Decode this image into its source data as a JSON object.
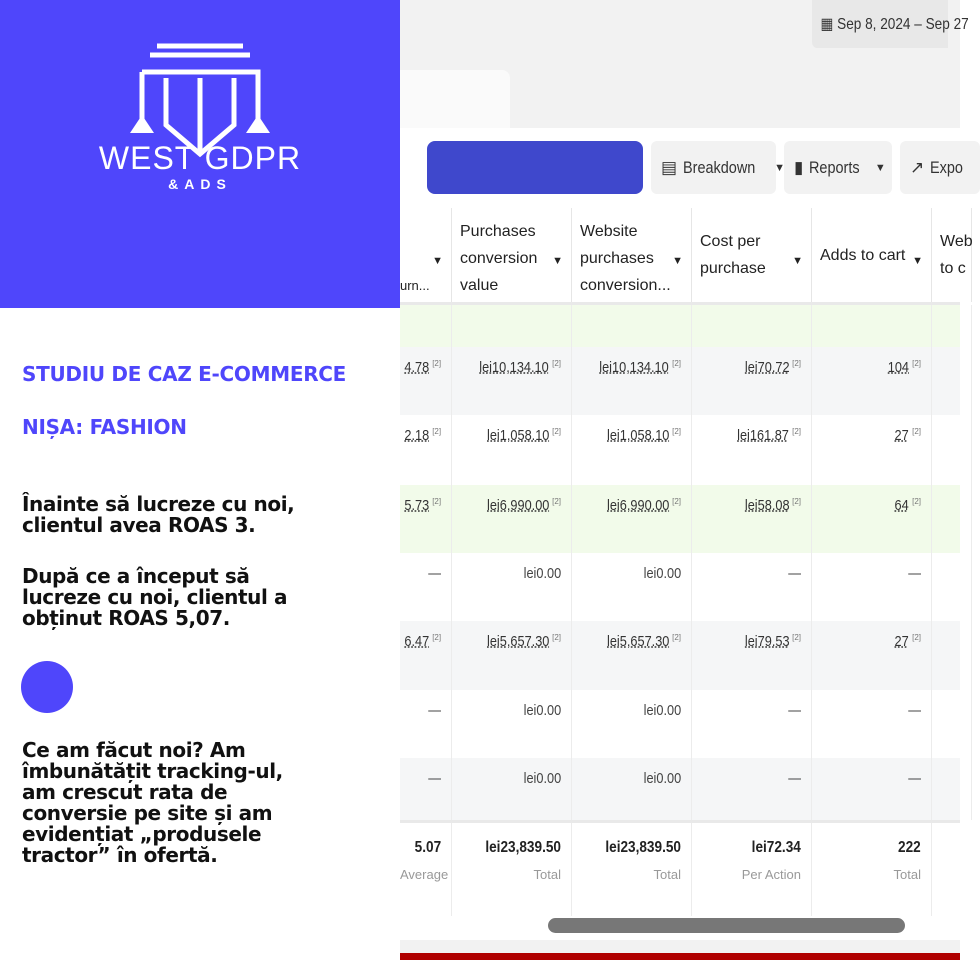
{
  "brand": {
    "name": "WEST GDPR",
    "sub": "&ADS",
    "color": "#4f46fb"
  },
  "content": {
    "heading1": "STUDIU DE CAZ E-COMMERCE",
    "heading2": "NIȘA: FASHION",
    "para1": [
      "Înainte să lucreze cu noi,",
      "clientul avea ROAS 3."
    ],
    "para2": [
      "După ce a început să",
      "lucreze cu noi, clientul a",
      "obținut ROAS 5,07."
    ],
    "para3": [
      "Ce am făcut noi? Am",
      "îmbunătățit tracking-ul,",
      "am crescut rata de",
      "conversie pe site și am",
      "evidențiat „produsele",
      "tractor” în ofertă."
    ]
  },
  "toolbar": {
    "date_range": "Sep 8, 2024 – Sep 27",
    "date_icon": "calendar-icon",
    "breakdown": "Breakdown",
    "reports": "Reports",
    "export": "Expo"
  },
  "table": {
    "headers": [
      "urn...",
      "Purchases conversion value",
      "Website purchases conversion...",
      "Cost per purchase",
      "Adds to cart",
      "Web to c"
    ],
    "rows": [
      {
        "bg": "#f2fbea",
        "cells": [
          "",
          "",
          "",
          "",
          ""
        ]
      },
      {
        "bg": "#f5f6f7",
        "cells": [
          "4.78",
          "lei10,134.10",
          "lei10,134.10",
          "lei70.72",
          "104"
        ]
      },
      {
        "bg": "#ffffff",
        "cells": [
          "2.18",
          "lei1,058.10",
          "lei1,058.10",
          "lei161.87",
          "27"
        ]
      },
      {
        "bg": "#f2fbea",
        "cells": [
          "5.73",
          "lei6,990.00",
          "lei6,990.00",
          "lei58.08",
          "64"
        ]
      },
      {
        "bg": "#ffffff",
        "cells": [
          "—",
          "lei0.00",
          "lei0.00",
          "—",
          "—"
        ]
      },
      {
        "bg": "#f5f6f7",
        "cells": [
          "6.47",
          "lei5,657.30",
          "lei5,657.30",
          "lei79.53",
          "27"
        ]
      },
      {
        "bg": "#ffffff",
        "cells": [
          "—",
          "lei0.00",
          "lei0.00",
          "—",
          "—"
        ]
      },
      {
        "bg": "#f5f6f7",
        "cells": [
          "—",
          "lei0.00",
          "lei0.00",
          "—",
          "—"
        ]
      }
    ],
    "footnote": "[2]",
    "totals": [
      {
        "value": "5.07",
        "label": "Average"
      },
      {
        "value": "lei23,839.50",
        "label": "Total"
      },
      {
        "value": "lei23,839.50",
        "label": "Total"
      },
      {
        "value": "lei72.34",
        "label": "Per Action"
      },
      {
        "value": "222",
        "label": "Total"
      }
    ]
  }
}
